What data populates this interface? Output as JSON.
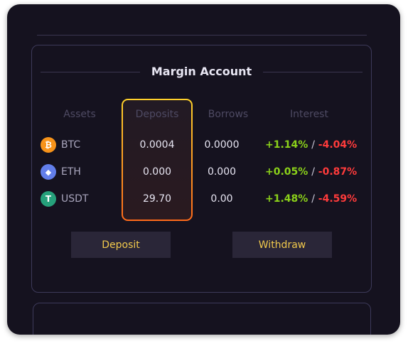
{
  "card": {
    "title": "Margin Account"
  },
  "table": {
    "headers": {
      "assets": "Assets",
      "deposits": "Deposits",
      "borrows": "Borrows",
      "interest": "Interest"
    },
    "rows": [
      {
        "asset": "BTC",
        "icon": "bitcoin-icon",
        "icon_color": "#f7931a",
        "glyph": "₿",
        "deposit": "0.0004",
        "borrow": "0.0000",
        "interest_pos": "+1.14%",
        "separator": "/",
        "interest_neg": "-4.04%"
      },
      {
        "asset": "ETH",
        "icon": "ethereum-icon",
        "icon_color": "#627eea",
        "glyph": "◆",
        "deposit": "0.000",
        "borrow": "0.000",
        "interest_pos": "+0.05%",
        "separator": "/",
        "interest_neg": "-0.87%"
      },
      {
        "asset": "USDT",
        "icon": "tether-icon",
        "icon_color": "#26a17b",
        "glyph": "T",
        "deposit": "29.70",
        "borrow": "0.00",
        "interest_pos": "+1.48%",
        "separator": "/",
        "interest_neg": "-4.59%"
      }
    ]
  },
  "buttons": {
    "deposit": "Deposit",
    "withdraw": "Withdraw"
  },
  "colors": {
    "accent": "#f1c94c",
    "positive": "#8bd11a",
    "negative": "#ff3b3b",
    "highlight_top": "#ffd22b",
    "highlight_bottom": "#ff6a1a"
  }
}
